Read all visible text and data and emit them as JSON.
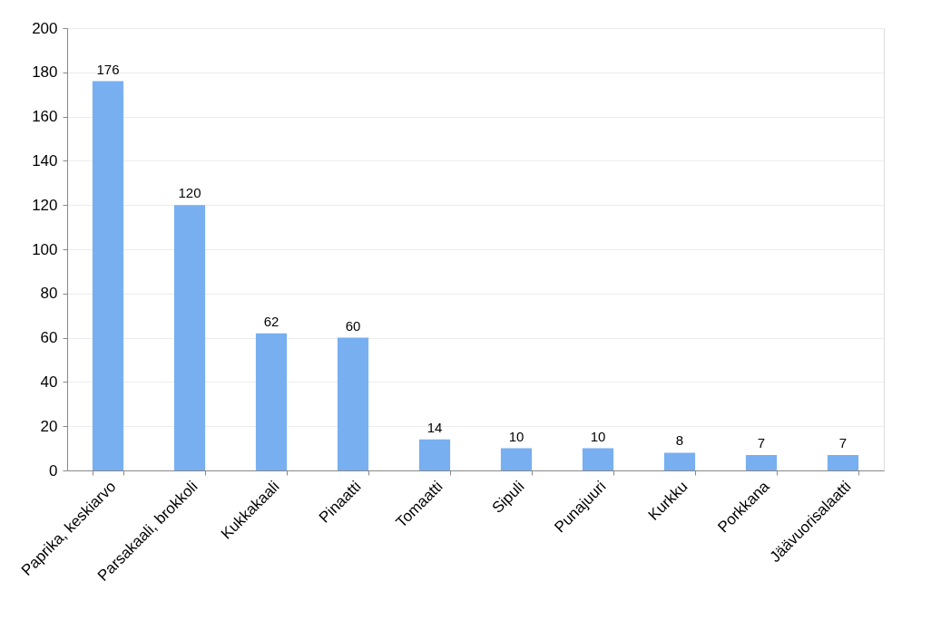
{
  "chart_data": {
    "type": "bar",
    "categories": [
      "Paprika, keskiarvo",
      "Parsakaali, brokkoli",
      "Kukkakaali",
      "Pinaatti",
      "Tomaatti",
      "Sipuli",
      "Punajuuri",
      "Kurkku",
      "Porkkana",
      "Jäävuorisalaatti"
    ],
    "values": [
      176,
      120,
      62,
      60,
      14,
      10,
      10,
      8,
      7,
      7
    ],
    "color": "#78aff0",
    "ylim": [
      0,
      200
    ],
    "yticks": [
      0,
      20,
      40,
      60,
      80,
      100,
      120,
      140,
      160,
      180,
      200
    ],
    "grid": "y",
    "data_labels": true
  }
}
